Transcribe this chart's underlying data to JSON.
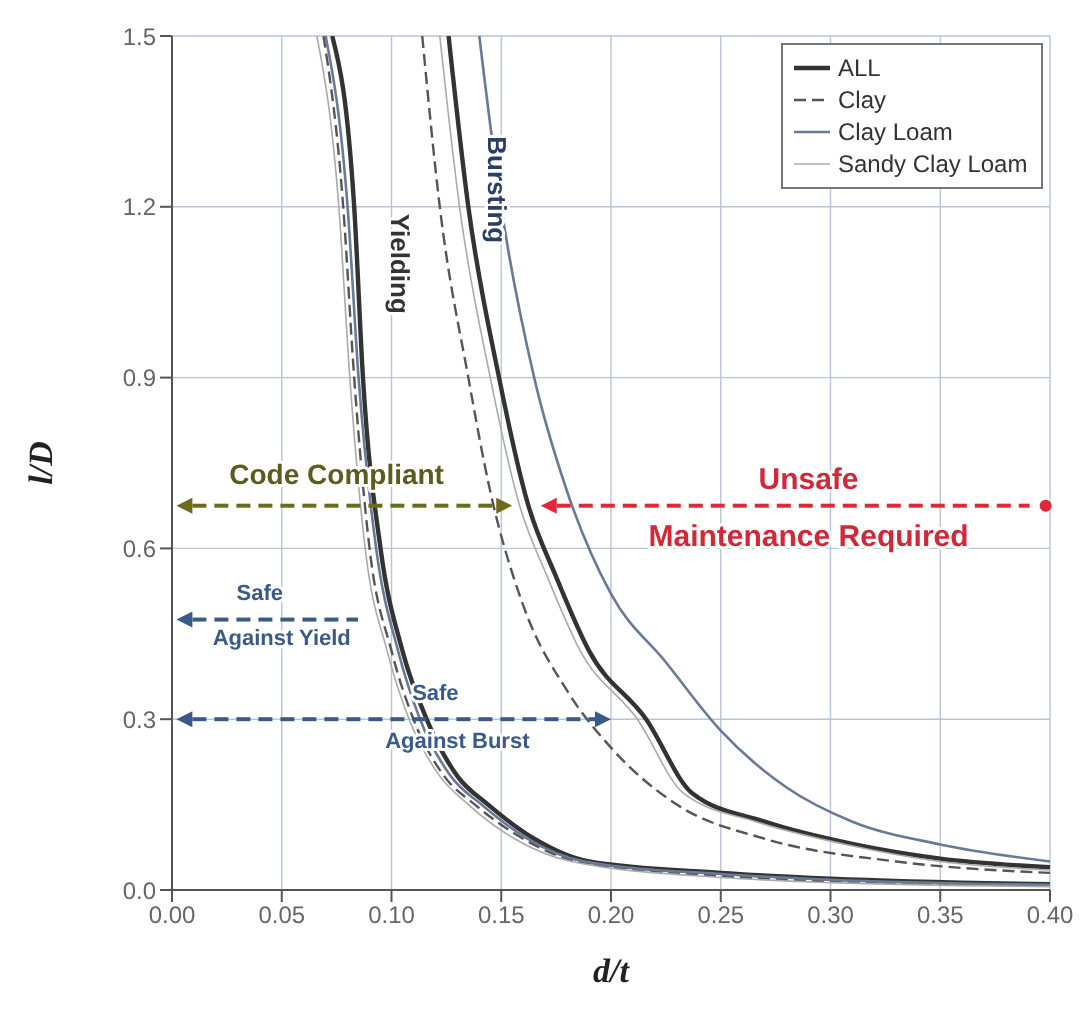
{
  "chart_data": {
    "type": "line",
    "xlabel": "d/t",
    "ylabel": "l/D",
    "xlim": [
      0,
      0.4
    ],
    "ylim": [
      0,
      1.5
    ],
    "xticks": [
      {
        "value": 0,
        "label": "0.00"
      },
      {
        "value": 0.05,
        "label": "0.05"
      },
      {
        "value": 0.1,
        "label": "0.10"
      },
      {
        "value": 0.15,
        "label": "0.15"
      },
      {
        "value": 0.2,
        "label": "0.20"
      },
      {
        "value": 0.25,
        "label": "0.25"
      },
      {
        "value": 0.3,
        "label": "0.30"
      },
      {
        "value": 0.35,
        "label": "0.35"
      },
      {
        "value": 0.4,
        "label": "0.40"
      }
    ],
    "yticks": [
      {
        "value": 0,
        "label": "0.0"
      },
      {
        "value": 0.3,
        "label": "0.3"
      },
      {
        "value": 0.6,
        "label": "0.6"
      },
      {
        "value": 0.9,
        "label": "0.9"
      },
      {
        "value": 1.2,
        "label": "1.2"
      },
      {
        "value": 1.5,
        "label": "1.5"
      }
    ],
    "grid": true,
    "legend": "top right",
    "marker": "none",
    "series": [
      {
        "name": "ALL",
        "color": "#333333",
        "line_style": "solid",
        "x": [
          0.073,
          0.083,
          0.087,
          0.095,
          0.105,
          0.116,
          0.13,
          0.144,
          0.165,
          0.19,
          0.25,
          0.3,
          0.4
        ],
        "values": [
          1.5,
          1.2,
          0.9,
          0.6,
          0.42,
          0.3,
          0.2,
          0.15,
          0.09,
          0.05,
          0.03,
          0.02,
          0.01
        ]
      },
      {
        "name": "Clay",
        "color": "#555555",
        "line_style": "dashed",
        "x": [
          0.069,
          0.078,
          0.083,
          0.09,
          0.1,
          0.11,
          0.124,
          0.138,
          0.16,
          0.185,
          0.25,
          0.3,
          0.4
        ],
        "values": [
          1.5,
          1.2,
          0.9,
          0.6,
          0.42,
          0.3,
          0.2,
          0.15,
          0.09,
          0.05,
          0.025,
          0.015,
          0.008
        ]
      },
      {
        "name": "Clay Loam",
        "color": "#6a7a96",
        "line_style": "solid",
        "x": [
          0.07,
          0.08,
          0.085,
          0.093,
          0.103,
          0.113,
          0.127,
          0.141,
          0.162,
          0.188,
          0.25,
          0.3,
          0.4
        ],
        "values": [
          1.5,
          1.2,
          0.9,
          0.6,
          0.42,
          0.3,
          0.2,
          0.15,
          0.09,
          0.05,
          0.028,
          0.018,
          0.009
        ]
      },
      {
        "name": "Sandy Clay Loam",
        "color": "#aaaaaa",
        "line_style": "solid",
        "x": [
          0.066,
          0.076,
          0.081,
          0.088,
          0.098,
          0.108,
          0.122,
          0.135,
          0.156,
          0.182,
          0.25,
          0.3,
          0.4
        ],
        "values": [
          1.5,
          1.2,
          0.9,
          0.6,
          0.42,
          0.3,
          0.2,
          0.15,
          0.09,
          0.05,
          0.022,
          0.013,
          0.006
        ]
      },
      {
        "color": "#333333",
        "line_style": "solid",
        "x": [
          0.126,
          0.135,
          0.149,
          0.162,
          0.175,
          0.19,
          0.216,
          0.237,
          0.27,
          0.311,
          0.35,
          0.4
        ],
        "values": [
          1.5,
          1.2,
          0.9,
          0.68,
          0.55,
          0.42,
          0.3,
          0.17,
          0.12,
          0.08,
          0.055,
          0.04
        ]
      },
      {
        "color": "#555555",
        "line_style": "dashed",
        "x": [
          0.114,
          0.122,
          0.135,
          0.145,
          0.16,
          0.18,
          0.2,
          0.23,
          0.27,
          0.33,
          0.4
        ],
        "values": [
          1.5,
          1.2,
          0.9,
          0.7,
          0.5,
          0.35,
          0.25,
          0.15,
          0.09,
          0.05,
          0.03
        ]
      },
      {
        "color": "#6a7a96",
        "line_style": "solid",
        "x": [
          0.14,
          0.15,
          0.165,
          0.18,
          0.2,
          0.225,
          0.25,
          0.28,
          0.31,
          0.35,
          0.4
        ],
        "values": [
          1.5,
          1.2,
          0.9,
          0.7,
          0.52,
          0.4,
          0.28,
          0.18,
          0.12,
          0.08,
          0.05
        ]
      },
      {
        "color": "#aaaaaa",
        "line_style": "solid",
        "x": [
          0.122,
          0.131,
          0.145,
          0.158,
          0.171,
          0.186,
          0.212,
          0.233,
          0.266,
          0.307,
          0.35,
          0.4
        ],
        "values": [
          1.5,
          1.2,
          0.9,
          0.68,
          0.55,
          0.42,
          0.3,
          0.17,
          0.12,
          0.08,
          0.05,
          0.035
        ]
      }
    ],
    "annotations": [
      "Yielding",
      "Bursting",
      "Code Compliant",
      "Unsafe",
      "Maintenance Required",
      "Safe",
      "Against Yield",
      "Safe",
      "Against Burst"
    ]
  }
}
